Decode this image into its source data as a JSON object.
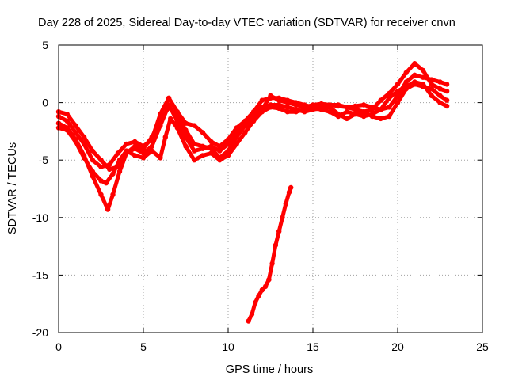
{
  "chart_data": {
    "type": "scatter",
    "title": "Day 228 of 2025, Sidereal Day-to-day VTEC variation (SDTVAR) for receiver cnvn",
    "xlabel": "GPS time / hours",
    "ylabel": "SDTVAR / TECUs",
    "xlim": [
      0,
      25
    ],
    "ylim": [
      -20,
      5
    ],
    "xticks": [
      0,
      5,
      10,
      15,
      20,
      25
    ],
    "yticks": [
      5,
      0,
      -5,
      -10,
      -15,
      -20
    ],
    "xtick_labels": [
      "0",
      "5",
      "10",
      "15",
      "20",
      "25"
    ],
    "ytick_labels": [
      "5",
      "0",
      "-5",
      "-10",
      "-15",
      "-20"
    ],
    "grid": true,
    "legend": "none",
    "marker_color": "#ff0000",
    "series": [
      {
        "name": "satellite-track-1",
        "points": [
          [
            0,
            -1.2
          ],
          [
            0.5,
            -1.6
          ],
          [
            1.0,
            -2.6
          ],
          [
            1.5,
            -3.6
          ],
          [
            2.0,
            -5.0
          ],
          [
            2.5,
            -5.6
          ],
          [
            3.0,
            -5.4
          ],
          [
            3.5,
            -4.4
          ],
          [
            4.0,
            -3.6
          ],
          [
            4.5,
            -3.4
          ],
          [
            5.0,
            -3.8
          ],
          [
            5.5,
            -3.2
          ],
          [
            6.0,
            -1.0
          ],
          [
            6.5,
            0.4
          ],
          [
            7.0,
            -0.8
          ],
          [
            7.5,
            -1.8
          ],
          [
            8.0,
            -2.0
          ],
          [
            8.5,
            -2.6
          ],
          [
            9.0,
            -3.4
          ],
          [
            9.5,
            -3.8
          ],
          [
            10.0,
            -3.2
          ],
          [
            10.5,
            -2.2
          ],
          [
            11.0,
            -1.6
          ],
          [
            11.5,
            -0.8
          ],
          [
            12.0,
            0.2
          ],
          [
            12.5,
            0.4
          ],
          [
            13.0,
            0.4
          ],
          [
            13.5,
            0.2
          ],
          [
            14.0,
            0.0
          ],
          [
            14.5,
            -0.2
          ],
          [
            15.0,
            -0.4
          ],
          [
            15.5,
            -0.3
          ],
          [
            16.0,
            -0.2
          ],
          [
            16.5,
            -0.3
          ],
          [
            17.0,
            -0.4
          ],
          [
            17.5,
            -0.3
          ],
          [
            18.0,
            -0.2
          ],
          [
            18.5,
            -0.4
          ],
          [
            19.0,
            -0.6
          ],
          [
            19.5,
            -0.4
          ],
          [
            20.0,
            0.6
          ],
          [
            20.5,
            1.8
          ],
          [
            21.0,
            2.4
          ],
          [
            21.5,
            2.2
          ],
          [
            22.0,
            2.0
          ],
          [
            22.5,
            1.8
          ],
          [
            22.9,
            1.6
          ]
        ]
      },
      {
        "name": "satellite-track-2",
        "points": [
          [
            0,
            -1.8
          ],
          [
            0.5,
            -2.2
          ],
          [
            1.0,
            -3.2
          ],
          [
            1.5,
            -4.6
          ],
          [
            2.0,
            -6.4
          ],
          [
            2.5,
            -8.0
          ],
          [
            2.9,
            -9.3
          ],
          [
            3.2,
            -8.0
          ],
          [
            3.6,
            -6.0
          ],
          [
            4.0,
            -4.4
          ],
          [
            4.5,
            -4.0
          ],
          [
            5.0,
            -4.4
          ],
          [
            5.5,
            -3.8
          ],
          [
            6.0,
            -2.0
          ],
          [
            6.5,
            -0.2
          ],
          [
            7.0,
            -1.6
          ],
          [
            7.5,
            -3.0
          ],
          [
            8.0,
            -4.2
          ],
          [
            8.5,
            -4.0
          ],
          [
            9.0,
            -3.8
          ],
          [
            9.5,
            -4.2
          ],
          [
            10.0,
            -3.6
          ],
          [
            10.5,
            -2.6
          ],
          [
            11.0,
            -1.8
          ],
          [
            11.5,
            -1.0
          ],
          [
            12.0,
            -0.4
          ],
          [
            12.5,
            -0.2
          ],
          [
            13.0,
            -0.2
          ],
          [
            13.5,
            -0.4
          ],
          [
            14.0,
            -0.6
          ],
          [
            14.5,
            -0.8
          ],
          [
            15.0,
            -0.6
          ],
          [
            15.5,
            -0.5
          ],
          [
            16.0,
            -0.4
          ],
          [
            16.5,
            -1.0
          ],
          [
            17.0,
            -1.4
          ],
          [
            17.5,
            -1.0
          ],
          [
            18.0,
            -0.8
          ],
          [
            18.5,
            -1.2
          ],
          [
            19.0,
            -1.4
          ],
          [
            19.5,
            -1.2
          ],
          [
            20.0,
            0.0
          ],
          [
            20.5,
            1.2
          ],
          [
            21.0,
            1.6
          ],
          [
            21.5,
            1.4
          ],
          [
            22.0,
            1.2
          ],
          [
            22.5,
            0.6
          ],
          [
            22.9,
            0.2
          ]
        ]
      },
      {
        "name": "satellite-track-3",
        "points": [
          [
            0,
            -0.8
          ],
          [
            0.5,
            -1.0
          ],
          [
            1.0,
            -2.0
          ],
          [
            1.5,
            -3.0
          ],
          [
            2.0,
            -4.2
          ],
          [
            2.5,
            -5.0
          ],
          [
            3.0,
            -5.8
          ],
          [
            3.5,
            -5.6
          ],
          [
            4.0,
            -4.4
          ],
          [
            4.5,
            -3.8
          ],
          [
            5.0,
            -4.0
          ],
          [
            5.5,
            -3.0
          ],
          [
            6.0,
            -1.6
          ],
          [
            6.5,
            -0.4
          ],
          [
            7.0,
            -1.2
          ],
          [
            7.5,
            -2.4
          ],
          [
            8.0,
            -3.6
          ],
          [
            8.5,
            -3.8
          ],
          [
            9.0,
            -4.0
          ],
          [
            9.5,
            -4.8
          ],
          [
            10.0,
            -4.2
          ],
          [
            10.5,
            -3.0
          ],
          [
            11.0,
            -2.0
          ],
          [
            11.5,
            -1.4
          ],
          [
            12.0,
            -0.6
          ],
          [
            12.5,
            0.6
          ],
          [
            13.0,
            0.2
          ],
          [
            13.5,
            0.0
          ],
          [
            14.0,
            -0.2
          ],
          [
            14.5,
            -0.4
          ],
          [
            15.0,
            -0.2
          ],
          [
            15.5,
            -0.1
          ],
          [
            16.0,
            -0.2
          ],
          [
            16.5,
            -0.2
          ],
          [
            17.0,
            -0.4
          ],
          [
            17.5,
            -0.6
          ],
          [
            18.0,
            -0.8
          ],
          [
            18.5,
            -0.6
          ],
          [
            19.0,
            0.2
          ],
          [
            19.5,
            0.8
          ],
          [
            20.0,
            1.6
          ],
          [
            20.5,
            2.6
          ],
          [
            21.0,
            3.4
          ],
          [
            21.5,
            2.8
          ],
          [
            22.0,
            1.6
          ],
          [
            22.5,
            1.2
          ],
          [
            22.9,
            1.0
          ]
        ]
      },
      {
        "name": "satellite-track-4",
        "points": [
          [
            0,
            -2.2
          ],
          [
            0.5,
            -2.4
          ],
          [
            1.0,
            -3.4
          ],
          [
            1.5,
            -4.8
          ],
          [
            2.0,
            -6.0
          ],
          [
            2.5,
            -6.8
          ],
          [
            2.8,
            -7.0
          ],
          [
            3.2,
            -6.2
          ],
          [
            3.6,
            -5.0
          ],
          [
            4.0,
            -4.2
          ],
          [
            4.5,
            -4.6
          ],
          [
            5.0,
            -4.8
          ],
          [
            5.5,
            -4.2
          ],
          [
            6.0,
            -4.8
          ],
          [
            6.3,
            -3.0
          ],
          [
            6.6,
            -1.4
          ],
          [
            7.0,
            -2.2
          ],
          [
            7.5,
            -3.8
          ],
          [
            8.0,
            -5.0
          ],
          [
            8.5,
            -4.6
          ],
          [
            9.0,
            -4.4
          ],
          [
            9.5,
            -5.0
          ],
          [
            10.0,
            -4.6
          ],
          [
            10.5,
            -3.6
          ],
          [
            11.0,
            -2.6
          ],
          [
            11.5,
            -1.6
          ],
          [
            12.0,
            -0.8
          ],
          [
            12.5,
            -0.4
          ],
          [
            13.0,
            -0.5
          ],
          [
            13.5,
            -0.8
          ],
          [
            14.0,
            -0.8
          ],
          [
            14.5,
            -0.6
          ],
          [
            15.0,
            -0.5
          ],
          [
            15.5,
            -0.6
          ],
          [
            16.0,
            -0.8
          ],
          [
            16.5,
            -1.2
          ],
          [
            17.0,
            -0.8
          ],
          [
            17.5,
            -1.0
          ],
          [
            18.0,
            -1.2
          ],
          [
            18.5,
            -1.0
          ],
          [
            19.0,
            -0.6
          ],
          [
            19.5,
            0.4
          ],
          [
            20.0,
            1.0
          ],
          [
            20.5,
            1.4
          ],
          [
            21.0,
            1.8
          ],
          [
            21.5,
            1.6
          ],
          [
            22.0,
            0.6
          ],
          [
            22.5,
            0.0
          ],
          [
            22.9,
            -0.3
          ]
        ]
      },
      {
        "name": "satellite-track-5",
        "points": [
          [
            11.2,
            -19.0
          ],
          [
            11.4,
            -18.4
          ],
          [
            11.6,
            -17.4
          ],
          [
            11.8,
            -16.8
          ],
          [
            12.0,
            -16.3
          ],
          [
            12.2,
            -16.0
          ],
          [
            12.4,
            -15.4
          ],
          [
            12.6,
            -14.0
          ],
          [
            12.8,
            -12.4
          ],
          [
            13.0,
            -11.2
          ],
          [
            13.2,
            -10.0
          ],
          [
            13.4,
            -8.8
          ],
          [
            13.6,
            -7.8
          ],
          [
            13.7,
            -7.4
          ]
        ]
      }
    ]
  }
}
